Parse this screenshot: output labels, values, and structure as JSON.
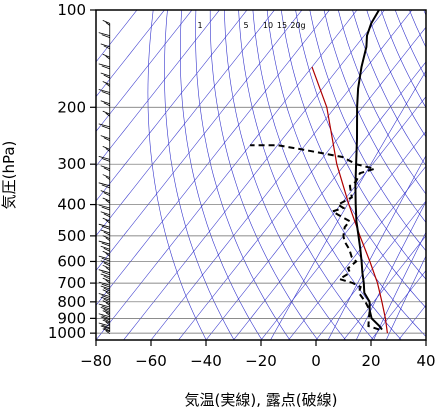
{
  "chart_data": {
    "type": "line",
    "xlabel": "気温(実線), 露点(破線)",
    "ylabel": "気圧(hPa)",
    "xlim": [
      -80,
      40
    ],
    "ylim": [
      1050,
      100
    ],
    "yscale": "log",
    "grid": true,
    "x_ticks": [
      -80,
      -60,
      -40,
      -20,
      0,
      20,
      40
    ],
    "y_ticks": [
      100,
      200,
      300,
      400,
      500,
      600,
      700,
      800,
      900,
      1000
    ],
    "mixing_ratio_labels": [
      "1",
      "5",
      "10",
      "15",
      "20g"
    ],
    "mixing_ratio_values": [
      1,
      5,
      10,
      15,
      20
    ],
    "temperature": {
      "p": [
        975,
        950,
        900,
        850,
        800,
        750,
        700,
        650,
        600,
        550,
        500,
        450,
        400,
        350,
        300,
        250,
        200,
        175,
        150,
        130,
        120,
        110,
        100
      ],
      "t": [
        21,
        19,
        14,
        11,
        8.5,
        4,
        1,
        -2.5,
        -6,
        -10,
        -14.5,
        -19.5,
        -24.5,
        -30,
        -36,
        -43,
        -52,
        -57,
        -62,
        -66,
        -69,
        -71,
        -72
      ]
    },
    "dewpoint": {
      "p": [
        975,
        950,
        900,
        850,
        800,
        750,
        720,
        700,
        690,
        680,
        650,
        630,
        600,
        580,
        550,
        520,
        500,
        470,
        450,
        440,
        430,
        420,
        410,
        400,
        380,
        350,
        340,
        320,
        310,
        300,
        285,
        270,
        262,
        262
      ],
      "td": [
        20,
        15,
        13,
        11,
        7,
        2,
        1,
        -3,
        -6,
        -9,
        -7,
        -9,
        -8,
        -11,
        -14,
        -18,
        -20,
        -22,
        -22,
        -25,
        -28,
        -31,
        -28,
        -31,
        -28,
        -32,
        -31,
        -32,
        -28,
        -36,
        -43,
        -60,
        -70,
        -80
      ]
    },
    "moist_adiabat": {
      "p": [
        1000,
        900,
        800,
        700,
        600,
        500,
        400,
        300,
        250,
        200,
        150
      ],
      "t": [
        24,
        19,
        13,
        6,
        -3,
        -14,
        -27,
        -43,
        -52,
        -63,
        -80
      ]
    },
    "wind_barbs_x": -75,
    "wind_barbs_pressures": [
      990,
      970,
      950,
      930,
      910,
      890,
      870,
      850,
      830,
      810,
      790,
      770,
      750,
      730,
      710,
      690,
      670,
      650,
      630,
      610,
      590,
      570,
      550,
      530,
      510,
      490,
      470,
      450,
      430,
      410,
      390,
      370,
      350,
      330,
      310,
      290,
      270,
      250,
      230,
      210,
      195,
      180,
      170,
      160,
      150,
      140,
      130,
      120,
      110
    ],
    "colors": {
      "temperature": "#000000",
      "dewpoint": "#000000",
      "moist_adiabat": "#b00000",
      "isotherms": "#3333cc",
      "dry_adiabats": "#3333cc",
      "mixing_ratio": "#3333cc",
      "grid": "#666666"
    }
  }
}
